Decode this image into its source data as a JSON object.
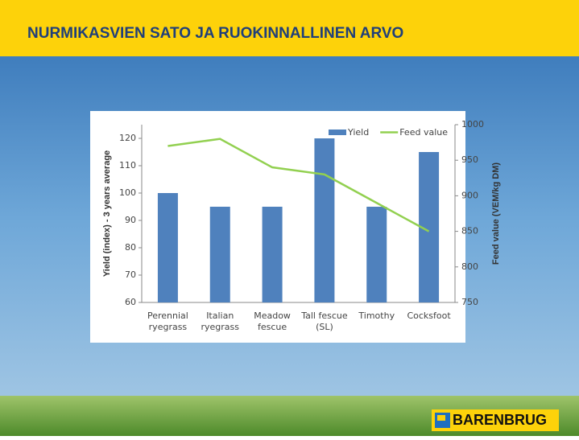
{
  "slide": {
    "title": "NURMIKASVIEN SATO JA RUOKINNALLINEN ARVO",
    "logo": "BARENBRUG"
  },
  "chart_data": {
    "type": "bar",
    "categories": [
      "Perennial\nryegrass",
      "Italian\nryegrass",
      "Meadow\nfescue",
      "Tall fescue\n(SL)",
      "Timothy",
      "Cocksfoot"
    ],
    "series": [
      {
        "name": "Yield",
        "type": "bar",
        "color": "#4f81bd",
        "values": [
          100,
          95,
          95,
          120,
          95,
          115
        ]
      },
      {
        "name": "Feed value",
        "type": "line",
        "axis": "y2",
        "color": "#92d050",
        "values": [
          970,
          980,
          940,
          930,
          890,
          850
        ]
      }
    ],
    "ylabel": "Yield (index) - 3 years average",
    "y2label": "Feed value (VEM/kg DM)",
    "ylim": [
      60,
      125
    ],
    "yticks": [
      60,
      70,
      80,
      90,
      100,
      110,
      120
    ],
    "y2lim": [
      750,
      1000
    ],
    "y2ticks": [
      750,
      800,
      850,
      900,
      950,
      1000
    ],
    "legend": "top-right"
  }
}
